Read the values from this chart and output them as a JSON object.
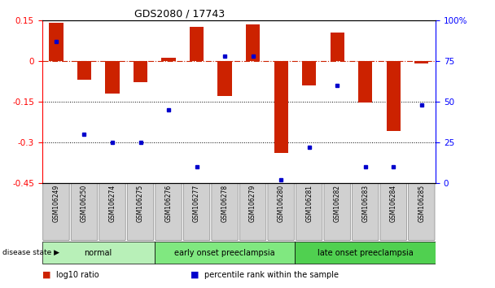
{
  "title": "GDS2080 / 17743",
  "samples": [
    "GSM106249",
    "GSM106250",
    "GSM106274",
    "GSM106275",
    "GSM106276",
    "GSM106277",
    "GSM106278",
    "GSM106279",
    "GSM106280",
    "GSM106281",
    "GSM106282",
    "GSM106283",
    "GSM106284",
    "GSM106285"
  ],
  "log10_ratio": [
    0.14,
    -0.07,
    -0.12,
    -0.08,
    0.01,
    0.125,
    -0.13,
    0.135,
    -0.34,
    -0.09,
    0.105,
    -0.155,
    -0.26,
    -0.01
  ],
  "percentile_rank": [
    87,
    30,
    25,
    25,
    45,
    10,
    78,
    78,
    2,
    22,
    60,
    10,
    10,
    48
  ],
  "groups": [
    {
      "label": "normal",
      "start": 0,
      "end": 4,
      "color": "#b8f0b8"
    },
    {
      "label": "early onset preeclampsia",
      "start": 4,
      "end": 9,
      "color": "#80e880"
    },
    {
      "label": "late onset preeclampsia",
      "start": 9,
      "end": 14,
      "color": "#50d050"
    }
  ],
  "bar_color": "#cc2200",
  "dot_color": "#0000cc",
  "ylim_left": [
    -0.45,
    0.15
  ],
  "ylim_right": [
    0,
    100
  ],
  "yticks_left": [
    0.15,
    0.0,
    -0.15,
    -0.3,
    -0.45
  ],
  "yticks_right": [
    100,
    75,
    50,
    25,
    0
  ],
  "dotted_lines": [
    -0.15,
    -0.3
  ],
  "background_color": "#ffffff",
  "disease_state_label": "disease state",
  "sample_box_color": "#d0d0d0"
}
